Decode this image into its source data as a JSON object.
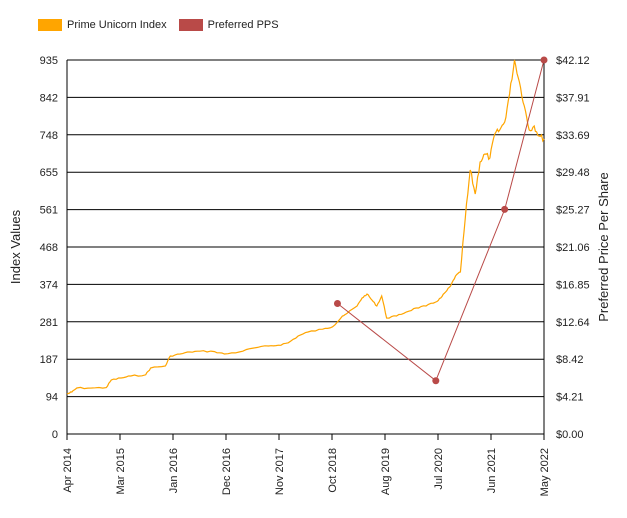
{
  "chart_data": {
    "type": "line",
    "legend_position": "top-left",
    "grid": true,
    "colors": {
      "index": "#FFA500",
      "pps": "#B94A48",
      "grid": "#000000"
    },
    "left_axis": {
      "label": "Index Values",
      "ticks": [
        "0",
        "94",
        "187",
        "281",
        "374",
        "468",
        "561",
        "655",
        "748",
        "842",
        "935"
      ],
      "range": [
        0,
        935
      ]
    },
    "right_axis": {
      "label": "Preferred Price Per Share",
      "ticks": [
        "$0.00",
        "$4.21",
        "$8.42",
        "$12.64",
        "$16.85",
        "$21.06",
        "$25.27",
        "$29.48",
        "$33.69",
        "$37.91",
        "$42.12"
      ],
      "range": [
        0,
        42.12
      ]
    },
    "x_axis": {
      "ticks": [
        "Apr 2014",
        "Mar 2015",
        "Jan 2016",
        "Dec 2016",
        "Nov 2017",
        "Oct 2018",
        "Aug 2019",
        "Jul 2020",
        "Jun 2021",
        "May 2022"
      ]
    },
    "series": [
      {
        "name": "Prime Unicorn Index",
        "axis": "left",
        "points": [
          [
            "2014-04",
            100
          ],
          [
            "2014-05",
            105
          ],
          [
            "2014-06",
            115
          ],
          [
            "2014-09",
            115
          ],
          [
            "2014-12",
            116
          ],
          [
            "2015-01",
            135
          ],
          [
            "2015-03",
            140
          ],
          [
            "2015-05",
            145
          ],
          [
            "2015-08",
            148
          ],
          [
            "2015-09",
            165
          ],
          [
            "2015-12",
            170
          ],
          [
            "2016-01",
            195
          ],
          [
            "2016-03",
            200
          ],
          [
            "2016-05",
            205
          ],
          [
            "2016-07",
            207
          ],
          [
            "2016-10",
            206
          ],
          [
            "2016-12",
            200
          ],
          [
            "2017-03",
            205
          ],
          [
            "2017-06",
            215
          ],
          [
            "2017-09",
            220
          ],
          [
            "2017-11",
            222
          ],
          [
            "2018-01",
            228
          ],
          [
            "2018-03",
            245
          ],
          [
            "2018-05",
            255
          ],
          [
            "2018-08",
            262
          ],
          [
            "2018-10",
            268
          ],
          [
            "2018-12",
            295
          ],
          [
            "2019-01",
            302
          ],
          [
            "2019-03",
            320
          ],
          [
            "2019-04",
            340
          ],
          [
            "2019-05",
            350
          ],
          [
            "2019-06",
            335
          ],
          [
            "2019-07",
            320
          ],
          [
            "2019-08",
            345
          ],
          [
            "2019-09",
            290
          ],
          [
            "2019-11",
            295
          ],
          [
            "2020-01",
            305
          ],
          [
            "2020-03",
            315
          ],
          [
            "2020-05",
            320
          ],
          [
            "2020-07",
            330
          ],
          [
            "2020-08",
            340
          ],
          [
            "2020-09",
            355
          ],
          [
            "2020-10",
            370
          ],
          [
            "2020-11",
            395
          ],
          [
            "2020-12",
            405
          ],
          [
            "2021-01",
            540
          ],
          [
            "2021-02",
            660
          ],
          [
            "2021-03",
            600
          ],
          [
            "2021-04",
            680
          ],
          [
            "2021-05",
            700
          ],
          [
            "2021-06",
            690
          ],
          [
            "2021-07",
            750
          ],
          [
            "2021-08",
            760
          ],
          [
            "2021-09",
            780
          ],
          [
            "2021-10",
            850
          ],
          [
            "2021-11",
            935
          ],
          [
            "2021-12",
            880
          ],
          [
            "2022-01",
            820
          ],
          [
            "2022-02",
            760
          ],
          [
            "2022-03",
            770
          ],
          [
            "2022-04",
            745
          ],
          [
            "2022-05",
            738
          ]
        ]
      },
      {
        "name": "Preferred PPS",
        "axis": "right",
        "points": [
          [
            "2018-11",
            14.7
          ],
          [
            "2020-07",
            6.0
          ],
          [
            "2021-09",
            25.3
          ],
          [
            "2022-05",
            42.12
          ]
        ]
      }
    ]
  }
}
